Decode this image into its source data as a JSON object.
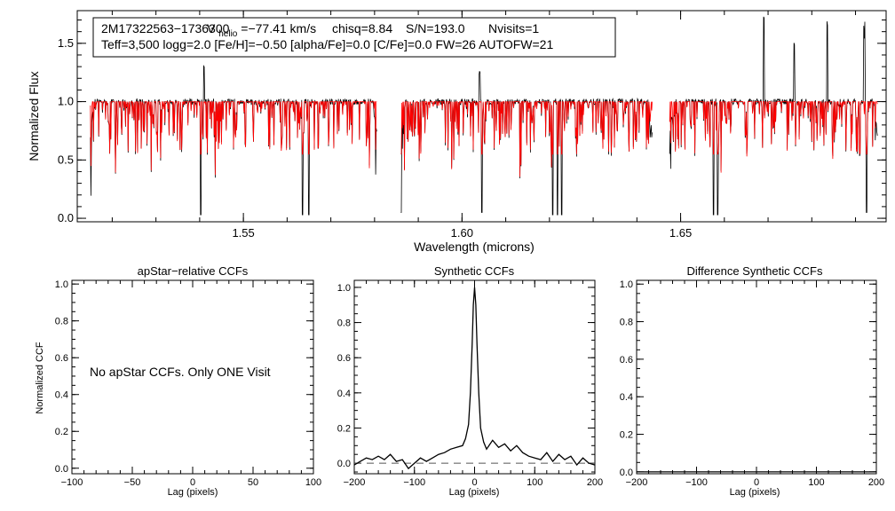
{
  "chart_data": [
    {
      "id": "spectrum",
      "type": "line",
      "title": "",
      "xlabel": "Wavelength (microns)",
      "ylabel": "Normalized Flux",
      "xlim": [
        1.512,
        1.697
      ],
      "ylim": [
        -0.03,
        1.78
      ],
      "xticks": [
        1.55,
        1.6,
        1.65
      ],
      "xtick_labels": [
        "1.55",
        "1.60",
        "1.65"
      ],
      "yticks": [
        0.0,
        0.5,
        1.0,
        1.5
      ],
      "ytick_labels": [
        "0.0",
        "0.5",
        "1.0",
        "1.5"
      ],
      "info": {
        "line1_star": "2M17322563−1736300",
        "line1_vhelio_prefix": "V",
        "line1_vhelio_sub": "helio",
        "line1_vhelio_value": "=−77.41 km/s",
        "line1_chisq": "chisq=8.84",
        "line1_sn": "S/N=193.0",
        "line1_nvisits": "Nvisits=1",
        "line2": "Teff=3,500 logg=2.0 [Fe/H]=−0.50 [alpha/Fe]=0.0 [C/Fe]=0.0 FW=26 AUTOFW=21"
      },
      "chips": [
        [
          1.515,
          1.5805
        ],
        [
          1.586,
          1.6435
        ],
        [
          1.6475,
          1.695
        ]
      ],
      "series": [
        {
          "name": "observed",
          "color": "#000000"
        },
        {
          "name": "synthetic",
          "color": "#ff0000"
        }
      ],
      "emission_lines": [
        [
          1.541,
          0.3
        ],
        [
          1.604,
          0.25
        ],
        [
          1.669,
          0.72
        ],
        [
          1.676,
          0.5
        ],
        [
          1.6835,
          0.68
        ],
        [
          1.692,
          0.66
        ]
      ],
      "deep_absorptions": [
        [
          1.5403,
          0.03
        ],
        [
          1.5635,
          0.03
        ],
        [
          1.565,
          0.03
        ],
        [
          1.586,
          0.05
        ],
        [
          1.6045,
          0.05
        ],
        [
          1.6208,
          0.03
        ],
        [
          1.6218,
          0.03
        ],
        [
          1.6228,
          0.03
        ],
        [
          1.6575,
          0.03
        ],
        [
          1.6585,
          0.03
        ],
        [
          1.6925,
          0.05
        ]
      ]
    },
    {
      "id": "apstar-ccf",
      "type": "line",
      "title": "apStar−relative CCFs",
      "xlabel": "Lag (pixels)",
      "ylabel": "Normalized CCF",
      "xlim": [
        -100,
        100
      ],
      "ylim": [
        -0.03,
        1.02
      ],
      "xticks": [
        -100,
        -50,
        0,
        50,
        100
      ],
      "xtick_labels": [
        "−100",
        "−50",
        "0",
        "50",
        "100"
      ],
      "yticks": [
        0.0,
        0.2,
        0.4,
        0.6,
        0.8,
        1.0
      ],
      "ytick_labels": [
        "0.0",
        "0.2",
        "0.4",
        "0.6",
        "0.8",
        "1.0"
      ],
      "annotation": "No apStar CCFs.  Only ONE Visit",
      "series": []
    },
    {
      "id": "synthetic-ccf",
      "type": "line",
      "title": "Synthetic CCFs",
      "xlabel": "Lag (pixels)",
      "ylabel": "",
      "xlim": [
        -200,
        200
      ],
      "ylim": [
        -0.06,
        1.04
      ],
      "xticks": [
        -200,
        -100,
        0,
        100,
        200
      ],
      "xtick_labels": [
        "−200",
        "−100",
        "0",
        "100",
        "200"
      ],
      "yticks": [
        0.0,
        0.2,
        0.4,
        0.6,
        0.8,
        1.0
      ],
      "ytick_labels": [
        "0.0",
        "0.2",
        "0.4",
        "0.6",
        "0.8",
        "1.0"
      ],
      "series": [
        {
          "name": "ccf",
          "color": "#000000",
          "x": [
            -200,
            -190,
            -180,
            -170,
            -160,
            -150,
            -140,
            -130,
            -120,
            -110,
            -100,
            -90,
            -80,
            -70,
            -60,
            -50,
            -40,
            -30,
            -20,
            -15,
            -10,
            -7,
            -4,
            -2,
            0,
            2,
            4,
            7,
            10,
            15,
            20,
            30,
            40,
            50,
            60,
            70,
            80,
            90,
            100,
            110,
            120,
            130,
            140,
            150,
            160,
            170,
            180,
            190,
            200
          ],
          "y": [
            -0.01,
            0.01,
            0.03,
            0.02,
            0.04,
            0.02,
            0.05,
            0.01,
            0.02,
            -0.03,
            0.0,
            0.03,
            0.01,
            0.03,
            0.05,
            0.06,
            0.08,
            0.09,
            0.1,
            0.14,
            0.22,
            0.4,
            0.68,
            0.9,
            1.0,
            0.9,
            0.68,
            0.4,
            0.2,
            0.12,
            0.08,
            0.13,
            0.09,
            0.11,
            0.07,
            0.1,
            0.06,
            0.04,
            0.03,
            0.02,
            0.06,
            0.01,
            0.05,
            0.02,
            0.04,
            -0.01,
            0.03,
            0.0,
            -0.01
          ]
        },
        {
          "name": "zero-line",
          "color": "#555555",
          "dashed": true,
          "x": [
            -200,
            200
          ],
          "y": [
            0.0,
            0.0
          ]
        }
      ]
    },
    {
      "id": "difference-ccf",
      "type": "line",
      "title": "Difference Synthetic CCFs",
      "xlabel": "Lag (pixels)",
      "ylabel": "",
      "xlim": [
        -200,
        200
      ],
      "ylim": [
        -0.01,
        1.02
      ],
      "xticks": [
        -200,
        -100,
        0,
        100,
        200
      ],
      "xtick_labels": [
        "−200",
        "−100",
        "0",
        "100",
        "200"
      ],
      "yticks": [
        0.0,
        0.2,
        0.4,
        0.6,
        0.8,
        1.0
      ],
      "ytick_labels": [
        "0.0",
        "0.2",
        "0.4",
        "0.6",
        "0.8",
        "1.0"
      ],
      "series": [
        {
          "name": "difference",
          "color": "#000000",
          "x": [
            -200,
            200
          ],
          "y": [
            0.0,
            0.0
          ]
        }
      ]
    }
  ]
}
